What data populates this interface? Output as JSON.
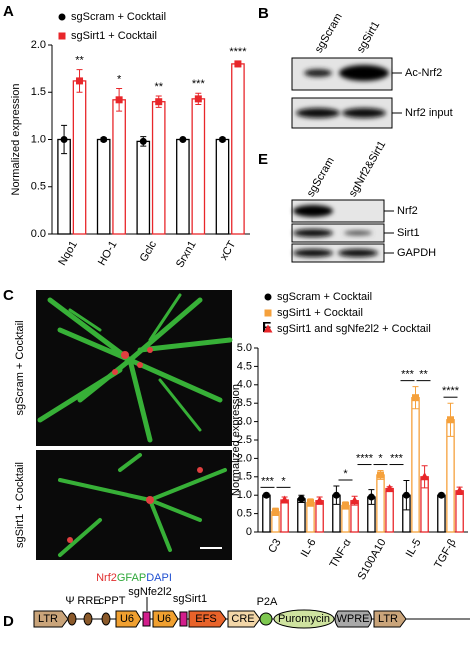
{
  "panel_letters": [
    "A",
    "B",
    "C",
    "D",
    "E",
    "F"
  ],
  "chart_data": [
    {
      "type": "bar",
      "ylabel": "Normalized expression",
      "categories": [
        "Nqo1",
        "HO-1",
        "Gclc",
        "Srxn1",
        "xCT"
      ],
      "series": [
        {
          "name": "sgScram + Cocktail",
          "color": "#000000",
          "marker": "circle",
          "values": [
            1.0,
            1.0,
            0.98,
            1.0,
            1.0
          ],
          "errors": [
            0.15,
            0.02,
            0.05,
            0.01,
            0.02
          ]
        },
        {
          "name": "sgSirt1 + Cocktail",
          "color": "#e8262a",
          "marker": "square",
          "values": [
            1.62,
            1.42,
            1.4,
            1.43,
            1.8
          ],
          "errors": [
            0.12,
            0.12,
            0.06,
            0.06,
            0.03
          ]
        }
      ],
      "significance": [
        "**",
        "*",
        "**",
        "***",
        "****"
      ],
      "ylim": [
        0,
        2.0
      ],
      "yticks": [
        {
          "value": 0,
          "label": "0.0"
        },
        0.5,
        {
          "value": 1,
          "label": "1.0"
        },
        1.5,
        {
          "value": 2,
          "label": "2.0"
        }
      ]
    },
    {
      "type": "bar",
      "ylabel": "Normalized expression",
      "categories": [
        "C3",
        "IL-6",
        "TNF-α",
        "S100A10",
        "IL-5",
        "TGF-β"
      ],
      "series": [
        {
          "name": "sgScram + Cocktail",
          "color": "#000000",
          "marker": "circle",
          "values": [
            1.0,
            0.9,
            1.0,
            0.95,
            1.0,
            1.0
          ],
          "errors": [
            0.05,
            0.1,
            0.25,
            0.2,
            0.4,
            0.05
          ]
        },
        {
          "name": "sgSirt1 + Cocktail",
          "color": "#f5a13c",
          "marker": "square",
          "values": [
            0.55,
            0.8,
            0.72,
            1.55,
            3.65,
            3.05
          ],
          "errors": [
            0.1,
            0.1,
            0.1,
            0.12,
            0.3,
            0.45
          ]
        },
        {
          "name": "sgSirt1 and sgNfe2l2 + Cocktail",
          "color": "#e8262a",
          "marker": "triangle",
          "values": [
            0.87,
            0.85,
            0.85,
            1.18,
            1.5,
            1.12
          ],
          "errors": [
            0.08,
            0.1,
            0.12,
            0.05,
            0.3,
            0.1
          ]
        }
      ],
      "significance": [
        [
          "***",
          "*"
        ],
        null,
        [
          "*"
        ],
        [
          "****",
          "*",
          "***"
        ],
        [
          "***",
          "**"
        ],
        [
          "****"
        ]
      ],
      "ylim": [
        0,
        5.0
      ],
      "yticks": [
        0,
        0.5,
        {
          "value": 1,
          "label": "1.0"
        },
        1.5,
        {
          "value": 2,
          "label": "2.0"
        },
        2.5,
        {
          "value": 3,
          "label": "3.0"
        },
        3.5,
        {
          "value": 4,
          "label": "4.0"
        },
        4.5,
        {
          "value": 5,
          "label": "5.0"
        }
      ]
    }
  ],
  "blot_b": {
    "lanes": [
      "sgScram",
      "sgSirt1"
    ],
    "bands": [
      "Ac-Nrf2",
      "Nrf2 input"
    ]
  },
  "blot_e": {
    "lanes": [
      "sgScram",
      "sgNrf2&Sirt1"
    ],
    "bands": [
      "Nrf2",
      "Sirt1",
      "GAPDH"
    ]
  },
  "image_c": {
    "groups": [
      "sgScram + Cocktail",
      "sgSirt1 + Cocktail"
    ],
    "stains": [
      {
        "name": "Nrf2",
        "color": "#e03030"
      },
      {
        "name": "GFAP",
        "color": "#2fa83a"
      },
      {
        "name": "DAPI",
        "color": "#2050d0"
      }
    ]
  },
  "diagram_d": {
    "elements": [
      "LTR",
      "Ψ",
      "RRE",
      "cPPT",
      "U6",
      "sgNfe2l2",
      "U6",
      "sgSirt1",
      "EFS",
      "CRE",
      "P2A",
      "Puromycin",
      "WPRE",
      "LTR"
    ]
  }
}
